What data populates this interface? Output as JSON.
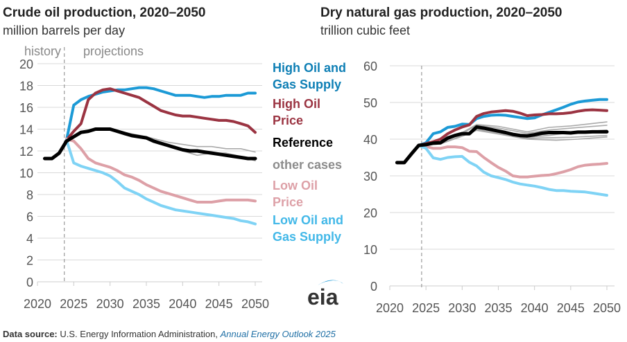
{
  "footer": {
    "source_label": "Data source:",
    "source_text": "U.S. Energy Information Administration,",
    "source_link": "Annual Energy Outlook 2025"
  },
  "logo": {
    "text": "eia"
  },
  "colors": {
    "high_supply": "#1c9ad6",
    "high_supply_text": "#0e7fb5",
    "high_price": "#9b3442",
    "reference": "#000000",
    "other": "#aaaaaa",
    "other_text": "#8c8c8c",
    "low_price": "#dda0a7",
    "low_supply": "#7fd3f5",
    "low_supply_text": "#42b8e8"
  },
  "legend": [
    {
      "key": "high_supply",
      "label_lines": [
        "High Oil and",
        "Gas Supply"
      ]
    },
    {
      "key": "high_price",
      "label_lines": [
        "High Oil",
        "Price"
      ]
    },
    {
      "key": "reference",
      "label_lines": [
        "Reference"
      ]
    },
    {
      "key": "other",
      "label_lines": [
        "other cases"
      ]
    },
    {
      "key": "low_price",
      "label_lines": [
        "Low Oil",
        "Price"
      ]
    },
    {
      "key": "low_supply",
      "label_lines": [
        "Low Oil and",
        "Gas Supply"
      ]
    }
  ],
  "chart_data": [
    {
      "type": "line",
      "title": "Crude oil production, 2020–2050",
      "subtitle": "million barrels per day",
      "annotations": {
        "history": "history",
        "projections": "projections",
        "divider_year": 2023.7
      },
      "xlim": [
        2020,
        2050
      ],
      "ylim": [
        0,
        20
      ],
      "xticks": [
        2020,
        2025,
        2030,
        2035,
        2040,
        2045,
        2050
      ],
      "yticks": [
        0,
        2,
        4,
        6,
        8,
        10,
        12,
        14,
        16,
        18,
        20
      ],
      "grid": true,
      "legend_placement": "right",
      "series": [
        {
          "key": "other",
          "x": [
            2024,
            2026,
            2028,
            2030,
            2032,
            2035,
            2038,
            2040,
            2042,
            2044,
            2046,
            2048,
            2050
          ],
          "y": [
            13.0,
            13.7,
            14.0,
            14.0,
            13.7,
            13.3,
            12.8,
            12.6,
            12.4,
            12.4,
            12.2,
            12.2,
            11.9
          ]
        },
        {
          "key": "other",
          "x": [
            2024,
            2026,
            2028,
            2030,
            2032,
            2035,
            2038,
            2040,
            2042,
            2044,
            2046,
            2048,
            2050
          ],
          "y": [
            13.0,
            13.6,
            13.9,
            13.9,
            13.6,
            13.1,
            12.5,
            12.0,
            11.6,
            11.8,
            11.8,
            11.5,
            11.1
          ]
        },
        {
          "key": "high_supply",
          "name": "High Oil and Gas Supply",
          "x": [
            2024,
            2025,
            2026,
            2027,
            2028,
            2029,
            2030,
            2031,
            2032,
            2033,
            2034,
            2035,
            2036,
            2037,
            2038,
            2039,
            2040,
            2041,
            2042,
            2043,
            2044,
            2045,
            2046,
            2047,
            2048,
            2049,
            2050
          ],
          "y": [
            13.0,
            16.2,
            16.7,
            17.0,
            17.2,
            17.4,
            17.5,
            17.6,
            17.6,
            17.7,
            17.8,
            17.8,
            17.7,
            17.5,
            17.3,
            17.1,
            17.1,
            17.1,
            17.0,
            16.9,
            17.0,
            17.0,
            17.1,
            17.1,
            17.1,
            17.3,
            17.3
          ]
        },
        {
          "key": "high_price",
          "name": "High Oil Price",
          "x": [
            2024,
            2025,
            2026,
            2027,
            2028,
            2029,
            2030,
            2031,
            2032,
            2033,
            2034,
            2035,
            2036,
            2037,
            2038,
            2039,
            2040,
            2041,
            2042,
            2043,
            2044,
            2045,
            2046,
            2047,
            2048,
            2049,
            2050
          ],
          "y": [
            13.0,
            13.8,
            14.5,
            16.7,
            17.3,
            17.6,
            17.7,
            17.5,
            17.3,
            17.1,
            16.9,
            16.5,
            16.1,
            15.7,
            15.5,
            15.3,
            15.2,
            15.2,
            15.1,
            15.0,
            14.9,
            14.8,
            14.8,
            14.7,
            14.5,
            14.3,
            13.7
          ]
        },
        {
          "key": "low_price",
          "name": "Low Oil Price",
          "x": [
            2024,
            2025,
            2026,
            2027,
            2028,
            2029,
            2030,
            2031,
            2032,
            2033,
            2034,
            2035,
            2036,
            2037,
            2038,
            2039,
            2040,
            2041,
            2042,
            2043,
            2044,
            2045,
            2046,
            2047,
            2048,
            2049,
            2050
          ],
          "y": [
            13.1,
            12.9,
            12.2,
            11.3,
            10.9,
            10.7,
            10.5,
            10.2,
            9.8,
            9.6,
            9.3,
            8.9,
            8.6,
            8.3,
            8.1,
            7.9,
            7.7,
            7.5,
            7.3,
            7.3,
            7.3,
            7.4,
            7.5,
            7.5,
            7.5,
            7.5,
            7.4
          ]
        },
        {
          "key": "low_supply",
          "name": "Low Oil and Gas Supply",
          "x": [
            2024,
            2025,
            2026,
            2027,
            2028,
            2029,
            2030,
            2031,
            2032,
            2033,
            2034,
            2035,
            2036,
            2037,
            2038,
            2039,
            2040,
            2041,
            2042,
            2043,
            2044,
            2045,
            2046,
            2047,
            2048,
            2049,
            2050
          ],
          "y": [
            13.0,
            10.9,
            10.6,
            10.4,
            10.2,
            10.0,
            9.7,
            9.2,
            8.6,
            8.3,
            8.0,
            7.6,
            7.3,
            7.0,
            6.8,
            6.6,
            6.5,
            6.4,
            6.3,
            6.2,
            6.1,
            6.0,
            5.9,
            5.8,
            5.6,
            5.5,
            5.3
          ]
        },
        {
          "key": "reference",
          "name": "Reference",
          "x": [
            2021,
            2022,
            2023,
            2024,
            2025,
            2026,
            2027,
            2028,
            2029,
            2030,
            2031,
            2032,
            2033,
            2034,
            2035,
            2036,
            2037,
            2038,
            2039,
            2040,
            2041,
            2042,
            2043,
            2044,
            2045,
            2046,
            2047,
            2048,
            2049,
            2050
          ],
          "y": [
            11.3,
            11.3,
            11.8,
            12.9,
            13.3,
            13.7,
            13.8,
            14.0,
            14.0,
            14.0,
            13.8,
            13.6,
            13.4,
            13.3,
            13.2,
            12.9,
            12.7,
            12.5,
            12.3,
            12.1,
            12.0,
            12.0,
            11.9,
            11.8,
            11.7,
            11.6,
            11.5,
            11.4,
            11.3,
            11.3
          ]
        }
      ]
    },
    {
      "type": "line",
      "title": "Dry natural gas production, 2020–2050",
      "subtitle": "trillion cubic feet",
      "annotations": {
        "divider_year": 2024.4
      },
      "xlim": [
        2020,
        2050
      ],
      "ylim": [
        0,
        60
      ],
      "xticks": [
        2020,
        2025,
        2030,
        2035,
        2040,
        2045,
        2050
      ],
      "yticks": [
        0,
        10,
        20,
        30,
        40,
        50,
        60
      ],
      "grid": true,
      "series": [
        {
          "key": "other",
          "x": [
            2024,
            2027,
            2030,
            2032,
            2035,
            2039,
            2042,
            2045,
            2050
          ],
          "y": [
            38.3,
            39.3,
            41.8,
            44.0,
            43.5,
            42.0,
            43.2,
            43.6,
            44.7
          ]
        },
        {
          "key": "other",
          "x": [
            2024,
            2027,
            2030,
            2032,
            2035,
            2039,
            2042,
            2045,
            2050
          ],
          "y": [
            38.3,
            39.0,
            41.5,
            43.8,
            43.0,
            41.6,
            42.5,
            43.0,
            43.8
          ]
        },
        {
          "key": "other",
          "x": [
            2024,
            2027,
            2030,
            2032,
            2035,
            2039,
            2042,
            2045,
            2050
          ],
          "y": [
            38.3,
            38.8,
            41.0,
            42.6,
            41.8,
            40.5,
            41.0,
            41.8,
            42.5
          ]
        },
        {
          "key": "other",
          "x": [
            2024,
            2027,
            2030,
            2032,
            2035,
            2039,
            2042,
            2045,
            2050
          ],
          "y": [
            38.3,
            38.7,
            40.8,
            42.5,
            41.5,
            40.2,
            40.4,
            40.5,
            41.0
          ]
        },
        {
          "key": "other",
          "x": [
            2024,
            2027,
            2030,
            2032,
            2035,
            2039,
            2043,
            2046,
            2050
          ],
          "y": [
            38.3,
            38.7,
            40.8,
            42.4,
            41.4,
            40.0,
            39.7,
            40.0,
            40.6
          ]
        },
        {
          "key": "high_supply",
          "name": "High Oil and Gas Supply",
          "x": [
            2024,
            2025,
            2026,
            2027,
            2028,
            2029,
            2030,
            2031,
            2032,
            2033,
            2034,
            2035,
            2036,
            2037,
            2038,
            2039,
            2040,
            2041,
            2042,
            2043,
            2044,
            2045,
            2046,
            2047,
            2048,
            2049,
            2050
          ],
          "y": [
            38.3,
            39.0,
            41.5,
            42.0,
            43.2,
            43.5,
            44.1,
            44.0,
            45.6,
            46.2,
            46.5,
            46.6,
            46.5,
            46.2,
            45.9,
            45.6,
            45.8,
            46.6,
            47.3,
            48.0,
            48.7,
            49.5,
            50.1,
            50.4,
            50.6,
            50.8,
            50.8
          ]
        },
        {
          "key": "high_price",
          "name": "High Oil Price",
          "x": [
            2024,
            2025,
            2026,
            2027,
            2028,
            2029,
            2030,
            2031,
            2032,
            2033,
            2034,
            2035,
            2036,
            2037,
            2038,
            2039,
            2040,
            2041,
            2042,
            2043,
            2044,
            2045,
            2046,
            2047,
            2048,
            2049,
            2050
          ],
          "y": [
            38.3,
            38.8,
            39.3,
            40.0,
            41.5,
            42.5,
            43.3,
            43.9,
            46.2,
            47.0,
            47.4,
            47.6,
            47.8,
            47.6,
            47.1,
            46.4,
            46.6,
            46.7,
            46.9,
            46.9,
            47.0,
            47.2,
            47.6,
            47.9,
            48.0,
            47.9,
            47.8
          ]
        },
        {
          "key": "low_price",
          "name": "Low Oil Price",
          "x": [
            2024,
            2025,
            2026,
            2027,
            2028,
            2029,
            2030,
            2031,
            2032,
            2033,
            2034,
            2035,
            2036,
            2037,
            2038,
            2039,
            2040,
            2041,
            2042,
            2043,
            2044,
            2045,
            2046,
            2047,
            2048,
            2049,
            2050
          ],
          "y": [
            38.3,
            38.0,
            37.5,
            37.5,
            37.9,
            37.9,
            37.7,
            36.7,
            36.6,
            35.0,
            33.6,
            32.3,
            31.3,
            30.0,
            29.7,
            29.7,
            29.9,
            30.1,
            30.2,
            30.6,
            31.1,
            31.7,
            32.5,
            32.9,
            33.1,
            33.2,
            33.4
          ]
        },
        {
          "key": "low_supply",
          "name": "Low Oil and Gas Supply",
          "x": [
            2024,
            2025,
            2026,
            2027,
            2028,
            2029,
            2030,
            2031,
            2032,
            2033,
            2034,
            2035,
            2036,
            2037,
            2038,
            2039,
            2040,
            2041,
            2042,
            2043,
            2044,
            2045,
            2046,
            2047,
            2048,
            2049,
            2050
          ],
          "y": [
            38.3,
            37.5,
            34.9,
            34.5,
            35.0,
            35.2,
            35.3,
            33.7,
            32.7,
            31.0,
            30.0,
            29.5,
            29.0,
            28.3,
            27.8,
            27.5,
            27.2,
            26.8,
            26.3,
            26.0,
            26.0,
            25.8,
            25.7,
            25.6,
            25.3,
            25.0,
            24.7
          ]
        },
        {
          "key": "reference",
          "name": "Reference",
          "x": [
            2021,
            2022,
            2023,
            2024,
            2025,
            2026,
            2027,
            2028,
            2029,
            2030,
            2031,
            2032,
            2033,
            2034,
            2035,
            2036,
            2037,
            2038,
            2039,
            2040,
            2041,
            2042,
            2043,
            2044,
            2045,
            2046,
            2047,
            2048,
            2049,
            2050
          ],
          "y": [
            33.6,
            33.6,
            36.0,
            38.3,
            38.5,
            38.9,
            39.0,
            40.3,
            41.0,
            41.5,
            41.5,
            43.3,
            43.0,
            42.6,
            42.2,
            41.8,
            41.3,
            41.0,
            40.9,
            41.2,
            41.6,
            41.8,
            41.8,
            41.8,
            41.7,
            41.9,
            41.9,
            42.0,
            42.0,
            42.0
          ]
        }
      ]
    }
  ]
}
